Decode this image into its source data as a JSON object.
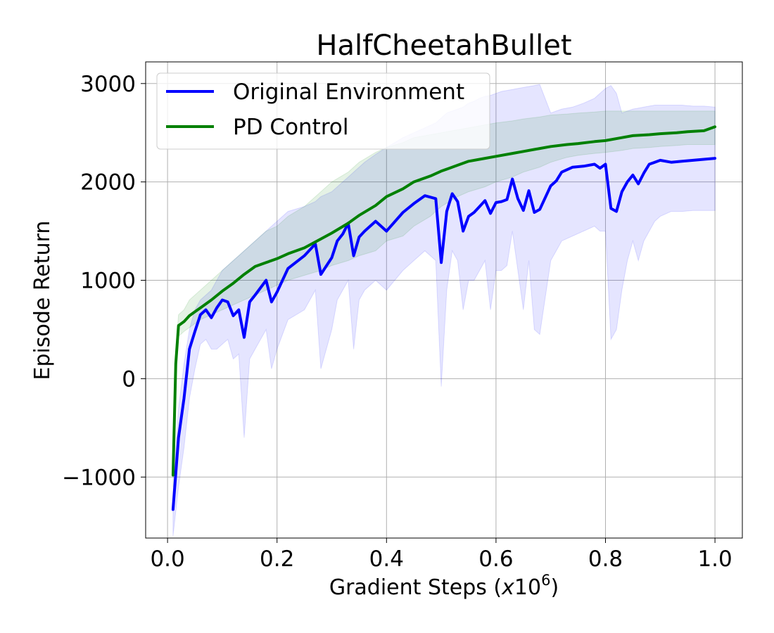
{
  "chart_data": {
    "type": "line",
    "title": "HalfCheetahBullet",
    "xlabel_prefix": "Gradient Steps (",
    "xlabel_var": "x",
    "xlabel_base": "10",
    "xlabel_exp": "6",
    "xlabel_suffix": ")",
    "ylabel": "Episode Return",
    "xlim": [
      -0.04,
      1.05
    ],
    "ylim": [
      -1620,
      3220
    ],
    "xticks": [
      0.0,
      0.2,
      0.4,
      0.6,
      0.8,
      1.0
    ],
    "xtick_labels": [
      "0.0",
      "0.2",
      "0.4",
      "0.6",
      "0.8",
      "1.0"
    ],
    "yticks": [
      -1000,
      0,
      1000,
      2000,
      3000
    ],
    "ytick_labels": [
      "−1000",
      "0",
      "1000",
      "2000",
      "3000"
    ],
    "grid": true,
    "legend": {
      "position": "top-left"
    },
    "series": [
      {
        "name": "Original Environment",
        "color": "#0000ff",
        "x": [
          0.01,
          0.02,
          0.03,
          0.04,
          0.05,
          0.06,
          0.07,
          0.08,
          0.09,
          0.1,
          0.11,
          0.12,
          0.13,
          0.14,
          0.15,
          0.16,
          0.18,
          0.19,
          0.2,
          0.22,
          0.25,
          0.27,
          0.28,
          0.3,
          0.31,
          0.32,
          0.33,
          0.34,
          0.35,
          0.36,
          0.38,
          0.4,
          0.43,
          0.45,
          0.47,
          0.49,
          0.5,
          0.51,
          0.52,
          0.53,
          0.54,
          0.55,
          0.56,
          0.57,
          0.58,
          0.59,
          0.6,
          0.61,
          0.62,
          0.63,
          0.64,
          0.65,
          0.66,
          0.67,
          0.68,
          0.7,
          0.71,
          0.72,
          0.74,
          0.76,
          0.78,
          0.79,
          0.8,
          0.81,
          0.82,
          0.83,
          0.84,
          0.85,
          0.86,
          0.87,
          0.88,
          0.89,
          0.9,
          0.92,
          0.94,
          0.96,
          0.98,
          1.0
        ],
        "y": [
          -1330,
          -600,
          -200,
          300,
          480,
          650,
          700,
          620,
          720,
          800,
          780,
          640,
          700,
          420,
          780,
          850,
          1000,
          780,
          880,
          1120,
          1250,
          1370,
          1060,
          1230,
          1400,
          1470,
          1580,
          1250,
          1440,
          1500,
          1600,
          1500,
          1690,
          1780,
          1860,
          1830,
          1180,
          1700,
          1880,
          1800,
          1500,
          1650,
          1690,
          1750,
          1810,
          1680,
          1790,
          1800,
          1820,
          2030,
          1830,
          1710,
          1910,
          1690,
          1720,
          1960,
          2010,
          2100,
          2150,
          2160,
          2180,
          2140,
          2180,
          1730,
          1700,
          1900,
          2000,
          2070,
          1980,
          2090,
          2180,
          2200,
          2220,
          2200,
          2210,
          2220,
          2230,
          2240
        ],
        "upper": [
          -1150,
          -300,
          150,
          500,
          700,
          800,
          850,
          900,
          1000,
          1100,
          1150,
          1200,
          1250,
          1300,
          1350,
          1400,
          1500,
          1550,
          1600,
          1700,
          1750,
          1800,
          1850,
          1900,
          1950,
          2000,
          2050,
          2100,
          2150,
          2200,
          2280,
          2350,
          2450,
          2500,
          2550,
          2600,
          2650,
          2700,
          2720,
          2740,
          2760,
          2800,
          2820,
          2850,
          2870,
          2880,
          2900,
          2920,
          2930,
          2940,
          2950,
          2960,
          2970,
          2980,
          2990,
          2700,
          2720,
          2740,
          2760,
          2800,
          2850,
          2900,
          2950,
          2980,
          2900,
          2700,
          2720,
          2740,
          2750,
          2760,
          2770,
          2780,
          2780,
          2780,
          2780,
          2770,
          2770,
          2760
        ],
        "lower": [
          -1600,
          -1100,
          -700,
          -200,
          100,
          350,
          400,
          300,
          300,
          350,
          400,
          200,
          250,
          -600,
          200,
          300,
          500,
          100,
          300,
          600,
          700,
          900,
          100,
          500,
          800,
          900,
          1000,
          300,
          800,
          900,
          1000,
          900,
          1100,
          1200,
          1300,
          1200,
          -80,
          900,
          1300,
          1200,
          700,
          1000,
          1000,
          1100,
          1200,
          700,
          1100,
          1100,
          1150,
          1500,
          1100,
          700,
          1200,
          500,
          450,
          1200,
          1300,
          1400,
          1450,
          1500,
          1550,
          1500,
          1500,
          400,
          500,
          900,
          1200,
          1400,
          1200,
          1400,
          1500,
          1600,
          1650,
          1700,
          1700,
          1710,
          1710,
          1710
        ]
      },
      {
        "name": "PD Control",
        "color": "#008000",
        "x": [
          0.01,
          0.015,
          0.02,
          0.03,
          0.04,
          0.05,
          0.06,
          0.08,
          0.1,
          0.12,
          0.14,
          0.16,
          0.18,
          0.2,
          0.22,
          0.25,
          0.28,
          0.3,
          0.33,
          0.35,
          0.38,
          0.4,
          0.43,
          0.45,
          0.48,
          0.5,
          0.53,
          0.55,
          0.58,
          0.6,
          0.63,
          0.65,
          0.68,
          0.7,
          0.73,
          0.75,
          0.78,
          0.8,
          0.83,
          0.85,
          0.88,
          0.9,
          0.93,
          0.95,
          0.98,
          1.0
        ],
        "y": [
          -980,
          150,
          540,
          580,
          640,
          680,
          720,
          800,
          890,
          970,
          1060,
          1140,
          1180,
          1220,
          1270,
          1330,
          1420,
          1480,
          1580,
          1660,
          1760,
          1850,
          1930,
          2000,
          2060,
          2110,
          2170,
          2210,
          2240,
          2260,
          2290,
          2310,
          2340,
          2360,
          2380,
          2390,
          2410,
          2420,
          2450,
          2470,
          2480,
          2490,
          2500,
          2510,
          2520,
          2560
        ],
        "upper": [
          -850,
          300,
          650,
          700,
          800,
          850,
          900,
          1000,
          1100,
          1200,
          1300,
          1400,
          1500,
          1550,
          1650,
          1750,
          1900,
          2000,
          2100,
          2200,
          2300,
          2350,
          2400,
          2450,
          2480,
          2500,
          2530,
          2550,
          2580,
          2600,
          2620,
          2640,
          2660,
          2680,
          2690,
          2700,
          2710,
          2720,
          2720,
          2720,
          2720,
          2720,
          2720,
          2720,
          2720,
          2720
        ],
        "lower": [
          -1100,
          0,
          430,
          480,
          520,
          560,
          600,
          650,
          700,
          750,
          800,
          850,
          900,
          950,
          1000,
          1050,
          1100,
          1150,
          1200,
          1250,
          1300,
          1400,
          1450,
          1550,
          1650,
          1750,
          1850,
          1900,
          1950,
          2000,
          2050,
          2100,
          2150,
          2200,
          2250,
          2270,
          2290,
          2300,
          2320,
          2340,
          2350,
          2360,
          2370,
          2380,
          2380,
          2380
        ]
      }
    ]
  }
}
